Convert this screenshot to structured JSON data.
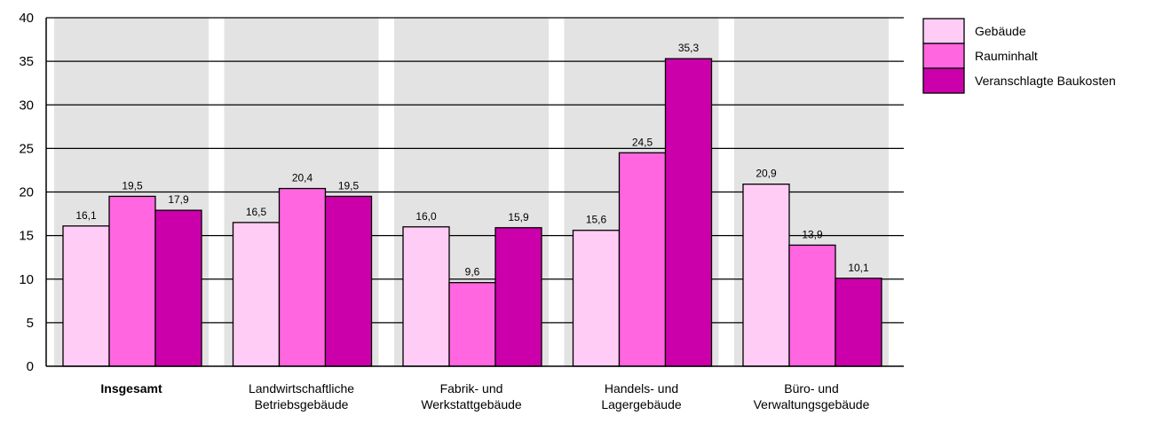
{
  "chart_data": {
    "type": "bar",
    "categories": [
      [
        "Insgesamt"
      ],
      [
        "Landwirtschaftliche",
        "Betriebsgebäude"
      ],
      [
        "Fabrik- und",
        "Werkstattgebäude"
      ],
      [
        "Handels- und",
        "Lagergebäude"
      ],
      [
        "Büro- und",
        "Verwaltungsgebäude"
      ]
    ],
    "category_bold": [
      true,
      false,
      false,
      false,
      false
    ],
    "series": [
      {
        "name": "Gebäude",
        "color": "#ffccf5",
        "values": [
          16.1,
          16.5,
          16.0,
          15.6,
          20.9
        ],
        "labels": [
          "16,1",
          "16,5",
          "16,0",
          "15,6",
          "20,9"
        ]
      },
      {
        "name": "Rauminhalt",
        "color": "#ff66e0",
        "values": [
          19.5,
          20.4,
          9.6,
          24.5,
          13.9
        ],
        "labels": [
          "19,5",
          "20,4",
          "9,6",
          "24,5",
          "13,9"
        ]
      },
      {
        "name": "Veranschlagte Baukosten",
        "color": "#cc00aa",
        "values": [
          17.9,
          19.5,
          15.9,
          35.3,
          10.1
        ],
        "labels": [
          "17,9",
          "19,5",
          "15,9",
          "35,3",
          "10,1"
        ]
      }
    ],
    "yticks": [
      0,
      5,
      10,
      15,
      20,
      25,
      30,
      35,
      40
    ],
    "ylim": [
      0,
      40
    ],
    "grid": true,
    "category_bands": true,
    "legend_position": "top-right",
    "title": "",
    "xlabel": "",
    "ylabel": ""
  }
}
